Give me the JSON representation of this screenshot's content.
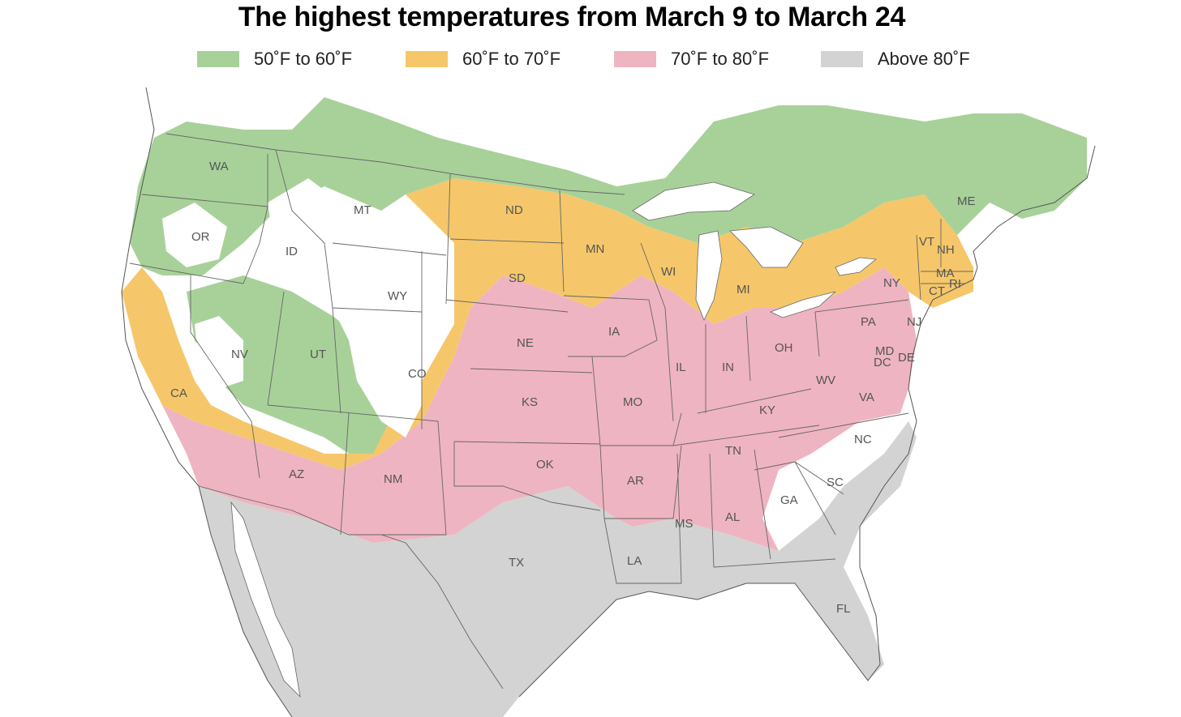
{
  "title": "The highest temperatures from March 9 to March 24",
  "legend": [
    {
      "label": "50˚F to 60˚F",
      "color": "#a8d19a"
    },
    {
      "label": "60˚F to 70˚F",
      "color": "#f5c76a"
    },
    {
      "label": "70˚F to 80˚F",
      "color": "#efb4c1"
    },
    {
      "label": "Above 80˚F",
      "color": "#d3d3d3"
    }
  ],
  "colors": {
    "land_unshaded": "#ffffff",
    "water": "#ffffff",
    "border": "#666666"
  },
  "states": {
    "WA": "WA",
    "OR": "OR",
    "CA": "CA",
    "ID": "ID",
    "NV": "NV",
    "MT": "MT",
    "WY": "WY",
    "UT": "UT",
    "AZ": "AZ",
    "CO": "CO",
    "NM": "NM",
    "ND": "ND",
    "SD": "SD",
    "NE": "NE",
    "KS": "KS",
    "OK": "OK",
    "TX": "TX",
    "MN": "MN",
    "IA": "IA",
    "MO": "MO",
    "AR": "AR",
    "LA": "LA",
    "WI": "WI",
    "IL": "IL",
    "MS": "MS",
    "MI": "MI",
    "IN": "IN",
    "KY": "KY",
    "TN": "TN",
    "AL": "AL",
    "OH": "OH",
    "GA": "GA",
    "FL": "FL",
    "SC": "SC",
    "NC": "NC",
    "VA": "VA",
    "WV": "WV",
    "PA": "PA",
    "NY": "NY",
    "MD": "MD",
    "DE": "DE",
    "DC": "DC",
    "NJ": "NJ",
    "CT": "CT",
    "RI": "RI",
    "MA": "MA",
    "VT": "VT",
    "NH": "NH",
    "ME": "ME"
  }
}
